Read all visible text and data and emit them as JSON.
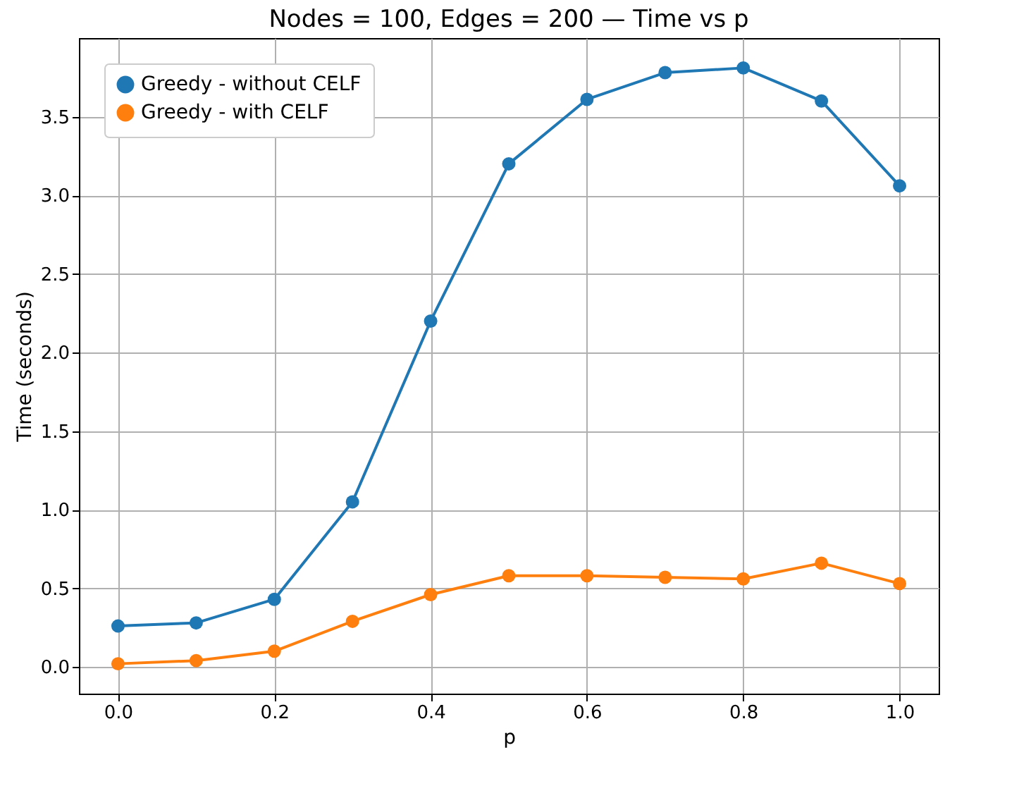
{
  "chart_data": {
    "type": "line",
    "title": "Nodes = 100, Edges = 200 — Time vs p",
    "xlabel": "p",
    "ylabel": "Time (seconds)",
    "x": [
      0.0,
      0.1,
      0.2,
      0.3,
      0.4,
      0.5,
      0.6,
      0.7,
      0.8,
      0.9,
      1.0
    ],
    "series": [
      {
        "name": "Greedy - without CELF",
        "color": "#1f77b4",
        "values": [
          0.26,
          0.28,
          0.43,
          1.05,
          2.2,
          3.2,
          3.61,
          3.78,
          3.81,
          3.6,
          3.06
        ]
      },
      {
        "name": "Greedy - with CELF",
        "color": "#ff7f0e",
        "values": [
          0.02,
          0.04,
          0.1,
          0.29,
          0.46,
          0.58,
          0.58,
          0.57,
          0.56,
          0.66,
          0.53
        ]
      }
    ],
    "xlim": [
      -0.05,
      1.05
    ],
    "xticks": [
      {
        "value": 0,
        "label": "0.0"
      },
      0.2,
      0.4,
      0.6,
      0.8,
      {
        "value": 1,
        "label": "1.0"
      }
    ],
    "ylim": [
      -0.17,
      4.0
    ],
    "yticks": [
      {
        "value": 0,
        "label": "0.0"
      },
      0.5,
      {
        "value": 1,
        "label": "1.0"
      },
      1.5,
      {
        "value": 2,
        "label": "2.0"
      },
      2.5,
      {
        "value": 3,
        "label": "3.0"
      },
      3.5
    ],
    "grid": true,
    "legend": "top left",
    "marker": "circle",
    "line_style": "solid"
  }
}
